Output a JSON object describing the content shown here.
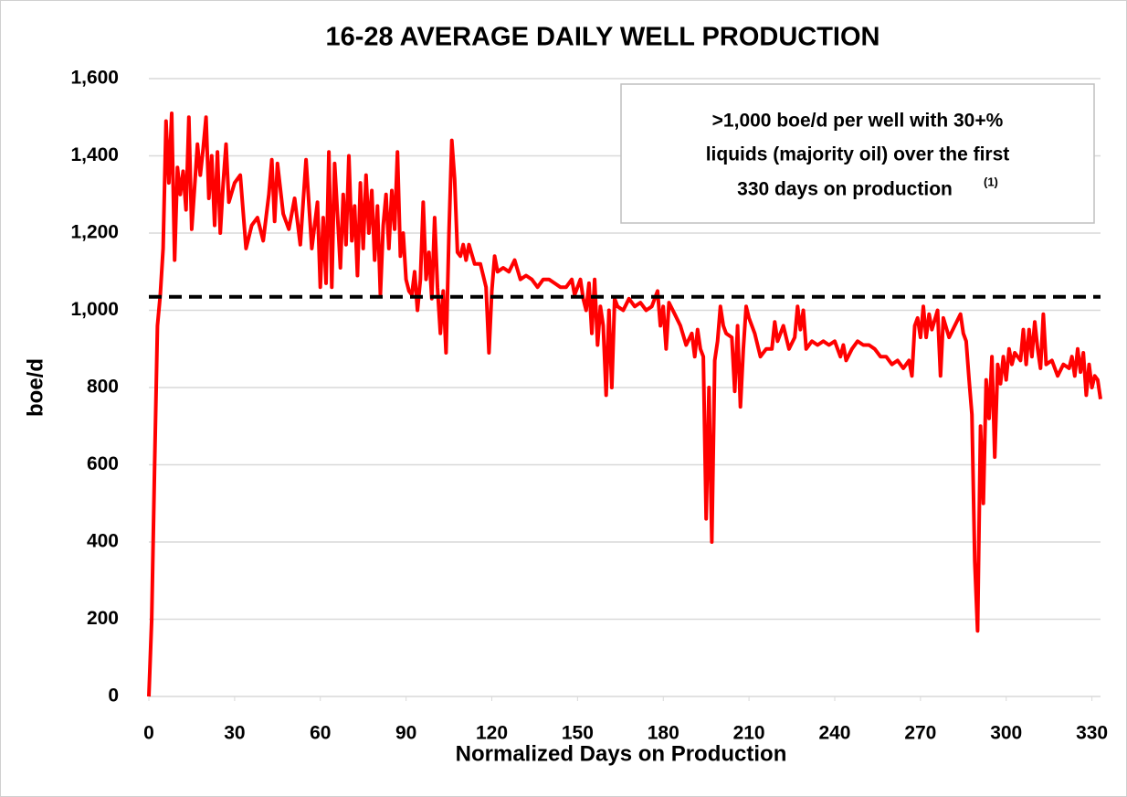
{
  "chart_data": {
    "type": "line",
    "title": "16-28 AVERAGE DAILY WELL PRODUCTION",
    "xlabel": "Normalized Days on Production",
    "ylabel": "boe/d",
    "annotation": {
      "lines": [
        ">1,000 boe/d per well with 30+%",
        "liquids (majority oil) over the first",
        "330 days on production"
      ],
      "superscript": "(1)"
    },
    "reference_line": {
      "value": 1035,
      "color": "#000000",
      "dashed": true
    },
    "xlim": [
      0,
      333
    ],
    "xticks": [
      0,
      30,
      60,
      90,
      120,
      150,
      180,
      210,
      240,
      270,
      300,
      330
    ],
    "ylim": [
      0,
      1600
    ],
    "yticks": [
      0,
      200,
      400,
      600,
      800,
      {
        "value": 1000,
        "label": "1,000"
      },
      {
        "value": 1200,
        "label": "1,200"
      },
      {
        "value": 1400,
        "label": "1,400"
      },
      {
        "value": 1600,
        "label": "1,600"
      }
    ],
    "grid": true,
    "x": [
      0,
      1,
      2,
      3,
      4,
      5,
      6,
      7,
      8,
      9,
      10,
      11,
      12,
      13,
      14,
      15,
      16,
      17,
      18,
      19,
      20,
      21,
      22,
      23,
      24,
      25,
      26,
      27,
      28,
      30,
      32,
      34,
      36,
      38,
      40,
      42,
      43,
      44,
      45,
      47,
      49,
      51,
      53,
      55,
      57,
      59,
      60,
      61,
      62,
      63,
      64,
      65,
      66,
      67,
      68,
      69,
      70,
      71,
      72,
      73,
      74,
      75,
      76,
      77,
      78,
      79,
      80,
      81,
      82,
      83,
      84,
      85,
      86,
      87,
      88,
      89,
      90,
      91,
      92,
      93,
      94,
      95,
      96,
      97,
      98,
      99,
      100,
      101,
      102,
      103,
      104,
      105,
      106,
      107,
      108,
      109,
      110,
      111,
      112,
      114,
      116,
      118,
      119,
      120,
      121,
      122,
      124,
      126,
      128,
      130,
      132,
      134,
      136,
      138,
      140,
      142,
      144,
      146,
      148,
      149,
      150,
      151,
      152,
      153,
      154,
      155,
      156,
      157,
      158,
      159,
      160,
      161,
      162,
      163,
      164,
      166,
      168,
      170,
      172,
      174,
      176,
      178,
      179,
      180,
      181,
      182,
      184,
      186,
      188,
      190,
      191,
      192,
      193,
      194,
      195,
      196,
      197,
      198,
      199,
      200,
      201,
      202,
      204,
      205,
      206,
      207,
      208,
      209,
      210,
      212,
      214,
      216,
      218,
      219,
      220,
      222,
      224,
      226,
      227,
      228,
      229,
      230,
      232,
      234,
      236,
      238,
      240,
      242,
      243,
      244,
      246,
      248,
      250,
      252,
      254,
      256,
      258,
      260,
      262,
      264,
      266,
      267,
      268,
      269,
      270,
      271,
      272,
      273,
      274,
      276,
      277,
      278,
      280,
      282,
      284,
      285,
      286,
      287,
      288,
      289,
      290,
      291,
      292,
      293,
      294,
      295,
      296,
      297,
      298,
      299,
      300,
      301,
      302,
      303,
      304,
      305,
      306,
      307,
      308,
      309,
      310,
      311,
      312,
      313,
      314,
      316,
      318,
      320,
      322,
      323,
      324,
      325,
      326,
      327,
      328,
      329,
      330,
      331,
      332,
      333
    ],
    "series": [
      {
        "name": "boe/d",
        "color": "#ff0000",
        "values": [
          0,
          200,
          600,
          960,
          1040,
          1160,
          1490,
          1330,
          1510,
          1130,
          1370,
          1300,
          1360,
          1260,
          1500,
          1210,
          1320,
          1430,
          1350,
          1420,
          1500,
          1290,
          1400,
          1220,
          1410,
          1200,
          1330,
          1430,
          1280,
          1330,
          1350,
          1160,
          1220,
          1240,
          1180,
          1300,
          1390,
          1230,
          1380,
          1250,
          1210,
          1290,
          1170,
          1390,
          1160,
          1280,
          1060,
          1240,
          1070,
          1410,
          1060,
          1380,
          1250,
          1110,
          1300,
          1170,
          1400,
          1180,
          1270,
          1090,
          1330,
          1160,
          1350,
          1200,
          1310,
          1130,
          1270,
          1040,
          1220,
          1300,
          1160,
          1310,
          1210,
          1410,
          1140,
          1200,
          1080,
          1050,
          1040,
          1100,
          1000,
          1080,
          1280,
          1080,
          1150,
          1030,
          1240,
          1060,
          940,
          1050,
          890,
          1200,
          1440,
          1340,
          1150,
          1140,
          1170,
          1130,
          1170,
          1120,
          1120,
          1060,
          890,
          1050,
          1140,
          1100,
          1110,
          1100,
          1130,
          1080,
          1090,
          1080,
          1060,
          1080,
          1080,
          1070,
          1060,
          1060,
          1080,
          1040,
          1060,
          1080,
          1030,
          1000,
          1070,
          940,
          1080,
          910,
          1010,
          960,
          780,
          1000,
          800,
          1030,
          1010,
          1000,
          1030,
          1010,
          1020,
          1000,
          1010,
          1050,
          960,
          1010,
          900,
          1020,
          990,
          960,
          910,
          940,
          880,
          950,
          900,
          880,
          460,
          800,
          400,
          870,
          920,
          1010,
          960,
          940,
          930,
          790,
          960,
          750,
          900,
          1010,
          980,
          940,
          880,
          900,
          900,
          970,
          920,
          960,
          900,
          930,
          1010,
          950,
          1000,
          900,
          920,
          910,
          920,
          910,
          920,
          880,
          910,
          870,
          900,
          920,
          910,
          910,
          900,
          880,
          880,
          860,
          870,
          850,
          870,
          830,
          960,
          980,
          930,
          1010,
          930,
          990,
          950,
          1000,
          830,
          980,
          930,
          960,
          990,
          940,
          920,
          820,
          730,
          350,
          170,
          700,
          500,
          820,
          720,
          880,
          620,
          860,
          810,
          880,
          820,
          900,
          860,
          890,
          880,
          870,
          950,
          860,
          950,
          880,
          970,
          900,
          850,
          990,
          860,
          870,
          830,
          860,
          850,
          880,
          830,
          900,
          840,
          890,
          780,
          860,
          800,
          830,
          820,
          770
        ]
      }
    ]
  }
}
